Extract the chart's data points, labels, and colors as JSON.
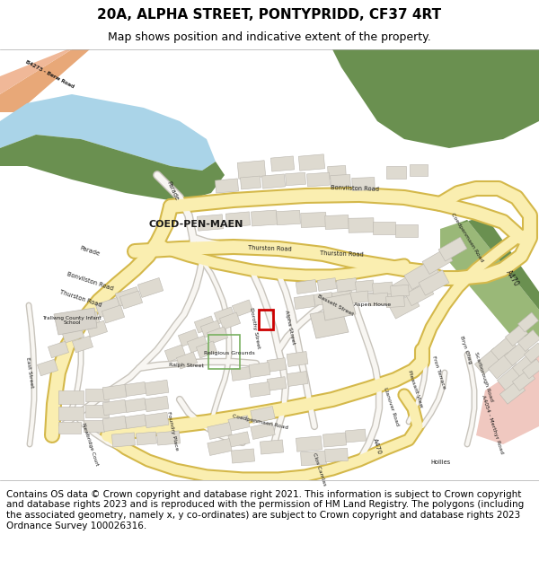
{
  "title": "20A, ALPHA STREET, PONTYPRIDD, CF37 4RT",
  "subtitle": "Map shows position and indicative extent of the property.",
  "footer": "Contains OS data © Crown copyright and database right 2021. This information is subject to Crown copyright and database rights 2023 and is reproduced with the permission of HM Land Registry. The polygons (including the associated geometry, namely x, y co-ordinates) are subject to Crown copyright and database rights 2023 Ordnance Survey 100026316.",
  "map_bg": "#f0ece4",
  "road_yellow_fill": "#faeeb0",
  "road_yellow_stroke": "#d4b84a",
  "water_blue": "#aad4e8",
  "green_dark": "#6a9050",
  "green_light": "#9ab878",
  "green_mid": "#80a860",
  "building_fill": "#dedad0",
  "building_stroke": "#bab6ae",
  "pink_light": "#f0c8c0",
  "orange_road": "#e8a878",
  "plot_stroke": "#cc0000",
  "title_fontsize": 11,
  "subtitle_fontsize": 9,
  "footer_fontsize": 7.5
}
